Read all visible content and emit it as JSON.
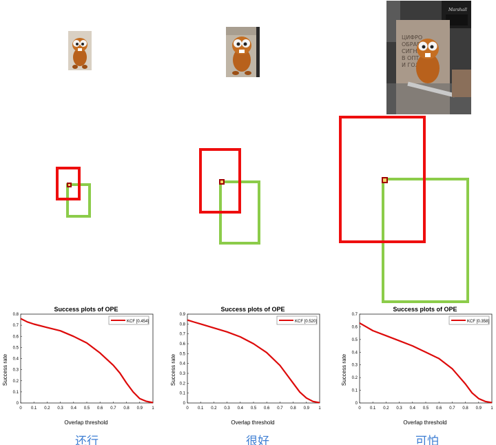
{
  "panels": [
    {
      "caption": "还行",
      "thumbnail": "beaver-toy-image"
    },
    {
      "caption": "很好",
      "thumbnail": "beaver-toy-image"
    },
    {
      "caption": "可怕",
      "thumbnail": "beaver-toy-with-book-image",
      "book_text": [
        "ЦИФРО",
        "ОБРАБ",
        "СИГНА",
        "В ОПТ",
        "И ГОЛ"
      ],
      "logo_text": "Marshall"
    }
  ],
  "colors": {
    "predicted_box": "#ee0e0e",
    "ground_truth_box": "#8ccc4a",
    "curve": "#dd0a0a",
    "caption": "#3d7ed3"
  },
  "chart_data": [
    {
      "type": "line",
      "title": "Success plots of OPE",
      "xlabel": "Overlap threshold",
      "ylabel": "Success rate",
      "xlim": [
        0,
        1
      ],
      "ylim": [
        0,
        0.8
      ],
      "xticks": [
        "0",
        "0.1",
        "0.2",
        "0.3",
        "0.4",
        "0.5",
        "0.6",
        "0.7",
        "0.8",
        "0.9",
        "1"
      ],
      "yticks": [
        "0",
        "0.1",
        "0.2",
        "0.3",
        "0.4",
        "0.5",
        "0.6",
        "0.7",
        "0.8"
      ],
      "legend_position": "top-right",
      "series": [
        {
          "name": "KCF [0.454]",
          "x": [
            0,
            0.05,
            0.1,
            0.2,
            0.3,
            0.4,
            0.5,
            0.6,
            0.7,
            0.75,
            0.8,
            0.85,
            0.9,
            0.95,
            1.0
          ],
          "y": [
            0.76,
            0.73,
            0.71,
            0.68,
            0.65,
            0.6,
            0.54,
            0.45,
            0.34,
            0.27,
            0.18,
            0.1,
            0.04,
            0.015,
            0.003
          ]
        }
      ]
    },
    {
      "type": "line",
      "title": "Success plots of OPE",
      "xlabel": "Overlap threshold",
      "ylabel": "Success rate",
      "xlim": [
        0,
        1
      ],
      "ylim": [
        0,
        0.9
      ],
      "xticks": [
        "0",
        "0.1",
        "0.2",
        "0.3",
        "0.4",
        "0.5",
        "0.6",
        "0.7",
        "0.8",
        "0.9",
        "1"
      ],
      "yticks": [
        "0",
        "0.1",
        "0.2",
        "0.3",
        "0.4",
        "0.5",
        "0.6",
        "0.7",
        "0.8",
        "0.9"
      ],
      "legend_position": "top-right",
      "series": [
        {
          "name": "KCF [0.520]",
          "x": [
            0,
            0.05,
            0.1,
            0.2,
            0.3,
            0.4,
            0.5,
            0.6,
            0.7,
            0.75,
            0.8,
            0.85,
            0.9,
            0.95,
            1.0
          ],
          "y": [
            0.84,
            0.82,
            0.8,
            0.76,
            0.72,
            0.67,
            0.6,
            0.51,
            0.38,
            0.29,
            0.2,
            0.11,
            0.05,
            0.015,
            0.003
          ]
        }
      ]
    },
    {
      "type": "line",
      "title": "Success plots of OPE",
      "xlabel": "Overlap threshold",
      "ylabel": "Success rate",
      "xlim": [
        0,
        1
      ],
      "ylim": [
        0,
        0.7
      ],
      "xticks": [
        "0",
        "0.1",
        "0.2",
        "0.3",
        "0.4",
        "0.5",
        "0.6",
        "0.7",
        "0.8",
        "0.9",
        "1"
      ],
      "yticks": [
        "0",
        "0.1",
        "0.2",
        "0.3",
        "0.4",
        "0.5",
        "0.6",
        "0.7"
      ],
      "legend_position": "top-right",
      "series": [
        {
          "name": "KCF [0.358]",
          "x": [
            0,
            0.05,
            0.1,
            0.2,
            0.3,
            0.4,
            0.5,
            0.6,
            0.7,
            0.75,
            0.8,
            0.85,
            0.9,
            0.95,
            1.0
          ],
          "y": [
            0.63,
            0.6,
            0.57,
            0.53,
            0.49,
            0.45,
            0.4,
            0.35,
            0.27,
            0.21,
            0.15,
            0.08,
            0.035,
            0.012,
            0.003
          ]
        }
      ]
    }
  ]
}
